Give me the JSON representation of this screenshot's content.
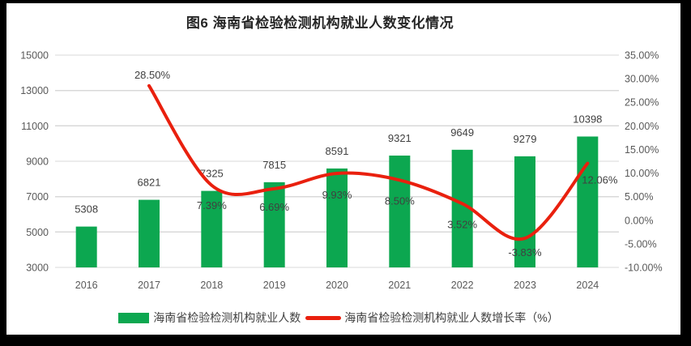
{
  "title": "图6  海南省检验检测机构就业人数变化情况",
  "colors": {
    "bar": "#0ca750",
    "line": "#e9200e",
    "grid": "#d9d9d9",
    "axis_text": "#595959",
    "data_label": "#404040",
    "frame_border": "#000000",
    "background": "#ffffff"
  },
  "legend": {
    "items": [
      {
        "swatch": "bar-swatch",
        "label": "海南省检验检测机构就业人数"
      },
      {
        "swatch": "line-swatch",
        "label": "海南省检验检测机构就业人数增长率（%）"
      }
    ]
  },
  "chart_data": {
    "type": "bar+line combo",
    "title": "图6  海南省检验检测机构就业人数变化情况",
    "categories": [
      "2016",
      "2017",
      "2018",
      "2019",
      "2020",
      "2021",
      "2022",
      "2023",
      "2024"
    ],
    "series": [
      {
        "name": "海南省检验检测机构就业人数",
        "type": "bar",
        "axis": "left",
        "values": [
          5308,
          6821,
          7325,
          7815,
          8591,
          9321,
          9649,
          9279,
          10398
        ],
        "labels": [
          "5308",
          "6821",
          "7325",
          "7815",
          "8591",
          "9321",
          "9649",
          "9279",
          "10398"
        ]
      },
      {
        "name": "海南省检验检测机构就业人数增长率（%）",
        "type": "line",
        "axis": "right",
        "values": [
          null,
          28.5,
          7.39,
          6.69,
          9.93,
          8.5,
          3.52,
          -3.83,
          12.06
        ],
        "labels": [
          "",
          "28.50%",
          "7.39%",
          "6.69%",
          "9.93%",
          "8.50%",
          "3.52%",
          "-3.83%",
          "12.06%"
        ]
      }
    ],
    "left_axis": {
      "min": 3000,
      "max": 15000,
      "step": 2000,
      "ticks": [
        "3000",
        "5000",
        "7000",
        "9000",
        "11000",
        "13000",
        "15000"
      ]
    },
    "right_axis": {
      "min": -10,
      "max": 35,
      "step": 5,
      "ticks": [
        "-10.00%",
        "-5.00%",
        "0.00%",
        "5.00%",
        "10.00%",
        "15.00%",
        "20.00%",
        "25.00%",
        "30.00%",
        "35.00%"
      ]
    },
    "grid": true,
    "legend_position": "bottom"
  }
}
